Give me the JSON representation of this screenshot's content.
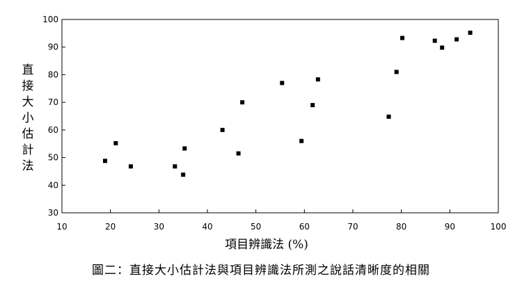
{
  "caption": "圖二：直接大小估計法與項目辨識法所測之說話清晰度的相關",
  "chart_data": {
    "type": "scatter",
    "title": "",
    "xlabel": "項目辨識法 (%)",
    "ylabel": "直接大小估計法",
    "xlim": [
      10,
      100
    ],
    "ylim": [
      30,
      100
    ],
    "x_ticks": [
      10,
      20,
      30,
      40,
      50,
      60,
      70,
      80,
      90,
      100
    ],
    "y_ticks": [
      30,
      40,
      50,
      60,
      70,
      80,
      90,
      100
    ],
    "grid": false,
    "marker": "square",
    "color": "#000000",
    "points": [
      {
        "x": 18.9,
        "y": 48.8
      },
      {
        "x": 21.1,
        "y": 55.2
      },
      {
        "x": 24.2,
        "y": 46.8
      },
      {
        "x": 33.3,
        "y": 46.8
      },
      {
        "x": 35.0,
        "y": 43.8
      },
      {
        "x": 35.3,
        "y": 53.3
      },
      {
        "x": 43.1,
        "y": 60.0
      },
      {
        "x": 46.4,
        "y": 51.5
      },
      {
        "x": 47.2,
        "y": 70.0
      },
      {
        "x": 55.4,
        "y": 77.0
      },
      {
        "x": 59.4,
        "y": 56.0
      },
      {
        "x": 61.7,
        "y": 69.0
      },
      {
        "x": 62.8,
        "y": 78.3
      },
      {
        "x": 77.4,
        "y": 64.8
      },
      {
        "x": 79.0,
        "y": 81.0
      },
      {
        "x": 80.2,
        "y": 93.3
      },
      {
        "x": 86.9,
        "y": 92.3
      },
      {
        "x": 88.4,
        "y": 89.8
      },
      {
        "x": 91.4,
        "y": 92.8
      },
      {
        "x": 94.2,
        "y": 95.2
      }
    ]
  }
}
